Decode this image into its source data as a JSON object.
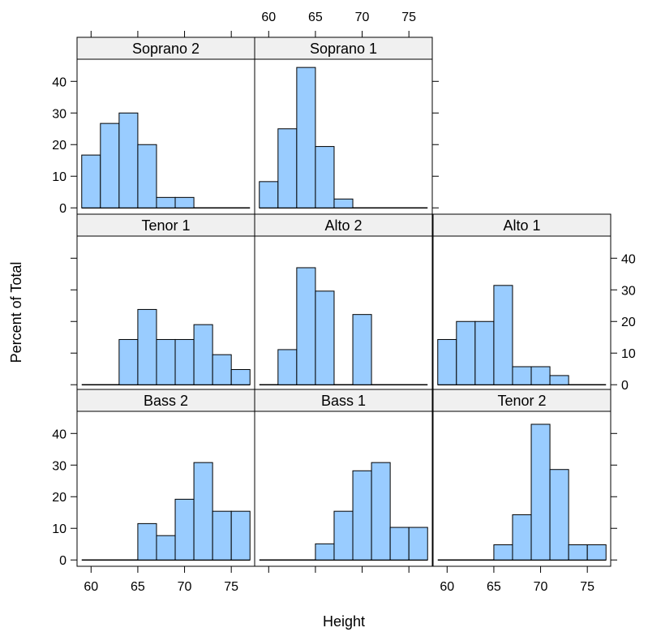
{
  "chart_data": {
    "type": "bar",
    "xlabel": "Height",
    "ylabel": "Percent of Total",
    "xlim": [
      58.5,
      77.5
    ],
    "ylim": [
      -2,
      47
    ],
    "xticks": [
      60,
      65,
      70,
      75
    ],
    "yticks": [
      0,
      10,
      20,
      30,
      40
    ],
    "bar_fill": "#99ccff",
    "strip_fill": "#f0f0f0",
    "bin_edges": [
      59,
      61,
      63,
      65,
      67,
      69,
      71,
      73,
      75,
      77
    ],
    "panels": [
      {
        "name": "Soprano 2",
        "row": 0,
        "col": 0,
        "values": [
          16.7,
          26.7,
          30.0,
          20.0,
          3.3,
          3.3,
          0,
          0,
          0
        ]
      },
      {
        "name": "Soprano 1",
        "row": 0,
        "col": 1,
        "values": [
          8.3,
          25.0,
          44.4,
          19.4,
          2.8,
          0,
          0,
          0,
          0
        ]
      },
      {
        "name": "Tenor 1",
        "row": 1,
        "col": 0,
        "values": [
          0,
          0,
          14.3,
          23.8,
          14.3,
          14.3,
          19.0,
          9.5,
          4.8
        ]
      },
      {
        "name": "Alto 2",
        "row": 1,
        "col": 1,
        "values": [
          0,
          11.1,
          37.0,
          29.6,
          0,
          22.2,
          0,
          0,
          0
        ]
      },
      {
        "name": "Alto 1",
        "row": 1,
        "col": 2,
        "values": [
          14.3,
          20.0,
          20.0,
          31.4,
          5.7,
          5.7,
          2.9,
          0,
          0
        ]
      },
      {
        "name": "Bass 2",
        "row": 2,
        "col": 0,
        "values": [
          0,
          0,
          0,
          11.5,
          7.7,
          19.2,
          30.8,
          15.4,
          15.4
        ]
      },
      {
        "name": "Bass 1",
        "row": 2,
        "col": 1,
        "values": [
          0,
          0,
          0,
          5.1,
          15.4,
          28.2,
          30.8,
          10.3,
          10.3
        ]
      },
      {
        "name": "Tenor 2",
        "row": 2,
        "col": 2,
        "values": [
          0,
          0,
          0,
          4.8,
          14.3,
          42.9,
          28.6,
          4.8,
          4.8
        ]
      }
    ]
  }
}
